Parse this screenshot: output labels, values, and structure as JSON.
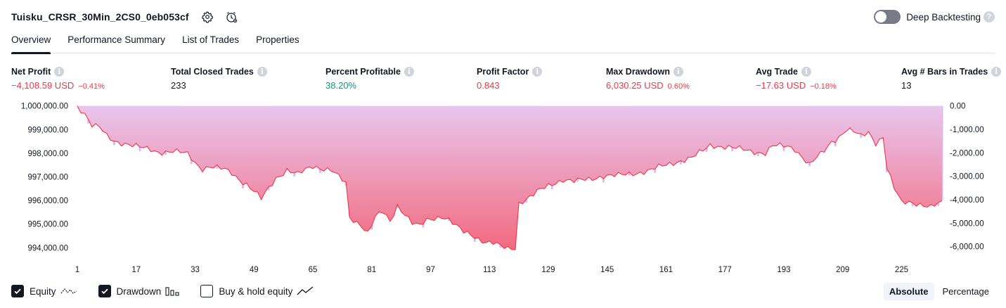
{
  "header": {
    "strategy_name": "Tuisku_CRSR_30Min_2CS0_0eb053cf",
    "deep_backtesting_label": "Deep Backtesting",
    "deep_backtesting_enabled": false
  },
  "tabs": [
    {
      "label": "Overview",
      "active": true
    },
    {
      "label": "Performance Summary",
      "active": false
    },
    {
      "label": "List of Trades",
      "active": false
    },
    {
      "label": "Properties",
      "active": false
    }
  ],
  "metrics": [
    {
      "label": "Net Profit",
      "value": "−4,108.59 USD",
      "pct": "−0.41%",
      "color": "#f23645"
    },
    {
      "label": "Total Closed Trades",
      "value": "233",
      "pct": "",
      "color": "#131722"
    },
    {
      "label": "Percent Profitable",
      "value": "38.20%",
      "pct": "",
      "color": "#089981"
    },
    {
      "label": "Profit Factor",
      "value": "0.843",
      "pct": "",
      "color": "#f23645"
    },
    {
      "label": "Max Drawdown",
      "value": "6,030.25 USD",
      "pct": "0.60%",
      "color": "#f23645"
    },
    {
      "label": "Avg Trade",
      "value": "−17.63 USD",
      "pct": "−0.18%",
      "color": "#f23645"
    },
    {
      "label": "Avg # Bars in Trades",
      "value": "13",
      "pct": "",
      "color": "#131722"
    }
  ],
  "chart_data": {
    "type": "area",
    "x_ticks": [
      "1",
      "17",
      "33",
      "49",
      "65",
      "81",
      "97",
      "113",
      "129",
      "145",
      "161",
      "177",
      "193",
      "209",
      "225"
    ],
    "x_range": [
      1,
      236
    ],
    "left_axis": {
      "ticks": [
        "1,000,000.00",
        "999,000.00",
        "998,000.00",
        "997,000.00",
        "996,000.00",
        "995,000.00",
        "994,000.00"
      ],
      "range": [
        993800,
        1000050
      ]
    },
    "right_axis": {
      "ticks": [
        "0.00",
        "-1,000.00",
        "-2,000.00",
        "-3,000.00",
        "-4,000.00",
        "-5,000.00",
        "-6,000.00"
      ],
      "range": [
        -6250,
        50
      ]
    },
    "equity_keypoints": [
      [
        1,
        1000000
      ],
      [
        3,
        999700
      ],
      [
        5,
        999200
      ],
      [
        7,
        999100
      ],
      [
        9,
        998700
      ],
      [
        11,
        998500
      ],
      [
        15,
        998400
      ],
      [
        19,
        998200
      ],
      [
        23,
        998050
      ],
      [
        27,
        998100
      ],
      [
        31,
        997950
      ],
      [
        33,
        997600
      ],
      [
        35,
        997350
      ],
      [
        37,
        997450
      ],
      [
        41,
        997300
      ],
      [
        43,
        997150
      ],
      [
        45,
        996900
      ],
      [
        47,
        996700
      ],
      [
        49,
        996400
      ],
      [
        51,
        996050
      ],
      [
        53,
        996500
      ],
      [
        55,
        996950
      ],
      [
        58,
        997300
      ],
      [
        61,
        997100
      ],
      [
        65,
        997450
      ],
      [
        70,
        997300
      ],
      [
        74,
        996700
      ],
      [
        75,
        995250
      ],
      [
        78,
        995000
      ],
      [
        80,
        994650
      ],
      [
        82,
        995300
      ],
      [
        84,
        995500
      ],
      [
        86,
        995100
      ],
      [
        88,
        995800
      ],
      [
        90,
        995450
      ],
      [
        92,
        995050
      ],
      [
        94,
        994900
      ],
      [
        96,
        995150
      ],
      [
        98,
        995250
      ],
      [
        100,
        995350
      ],
      [
        102,
        995200
      ],
      [
        104,
        994900
      ],
      [
        106,
        994650
      ],
      [
        108,
        994550
      ],
      [
        110,
        994400
      ],
      [
        112,
        994250
      ],
      [
        114,
        994200
      ],
      [
        116,
        994050
      ],
      [
        118,
        993950
      ],
      [
        120,
        994000
      ],
      [
        121,
        995900
      ],
      [
        124,
        996150
      ],
      [
        127,
        996450
      ],
      [
        130,
        996700
      ],
      [
        133,
        996900
      ],
      [
        136,
        996800
      ],
      [
        140,
        996900
      ],
      [
        144,
        997050
      ],
      [
        148,
        997050
      ],
      [
        152,
        997150
      ],
      [
        156,
        997250
      ],
      [
        160,
        997450
      ],
      [
        164,
        997650
      ],
      [
        168,
        997800
      ],
      [
        171,
        998100
      ],
      [
        173,
        998350
      ],
      [
        176,
        998300
      ],
      [
        180,
        998200
      ],
      [
        184,
        998100
      ],
      [
        188,
        998000
      ],
      [
        190,
        998300
      ],
      [
        194,
        998300
      ],
      [
        196,
        998200
      ],
      [
        198,
        997850
      ],
      [
        200,
        997500
      ],
      [
        202,
        997800
      ],
      [
        204,
        998100
      ],
      [
        206,
        998500
      ],
      [
        208,
        998700
      ],
      [
        210,
        999000
      ],
      [
        212,
        998900
      ],
      [
        214,
        998700
      ],
      [
        216,
        998900
      ],
      [
        218,
        998450
      ],
      [
        220,
        998700
      ],
      [
        221,
        997400
      ],
      [
        223,
        996500
      ],
      [
        225,
        995900
      ],
      [
        227,
        995950
      ],
      [
        229,
        995900
      ],
      [
        231,
        995800
      ],
      [
        233,
        995700
      ],
      [
        235,
        995850
      ],
      [
        236,
        995900
      ]
    ],
    "series": [
      {
        "name": "Equity",
        "color": "#f23645"
      },
      {
        "name": "Drawdown",
        "color": "#c39bf5"
      },
      {
        "name": "Buy & hold equity",
        "color": "#131722"
      }
    ]
  },
  "legend": {
    "equity_label": "Equity",
    "drawdown_label": "Drawdown",
    "buyhold_label": "Buy & hold equity",
    "equity_checked": true,
    "drawdown_checked": true,
    "buyhold_checked": false
  },
  "modes": {
    "absolute_label": "Absolute",
    "percentage_label": "Percentage",
    "active": "Absolute"
  }
}
